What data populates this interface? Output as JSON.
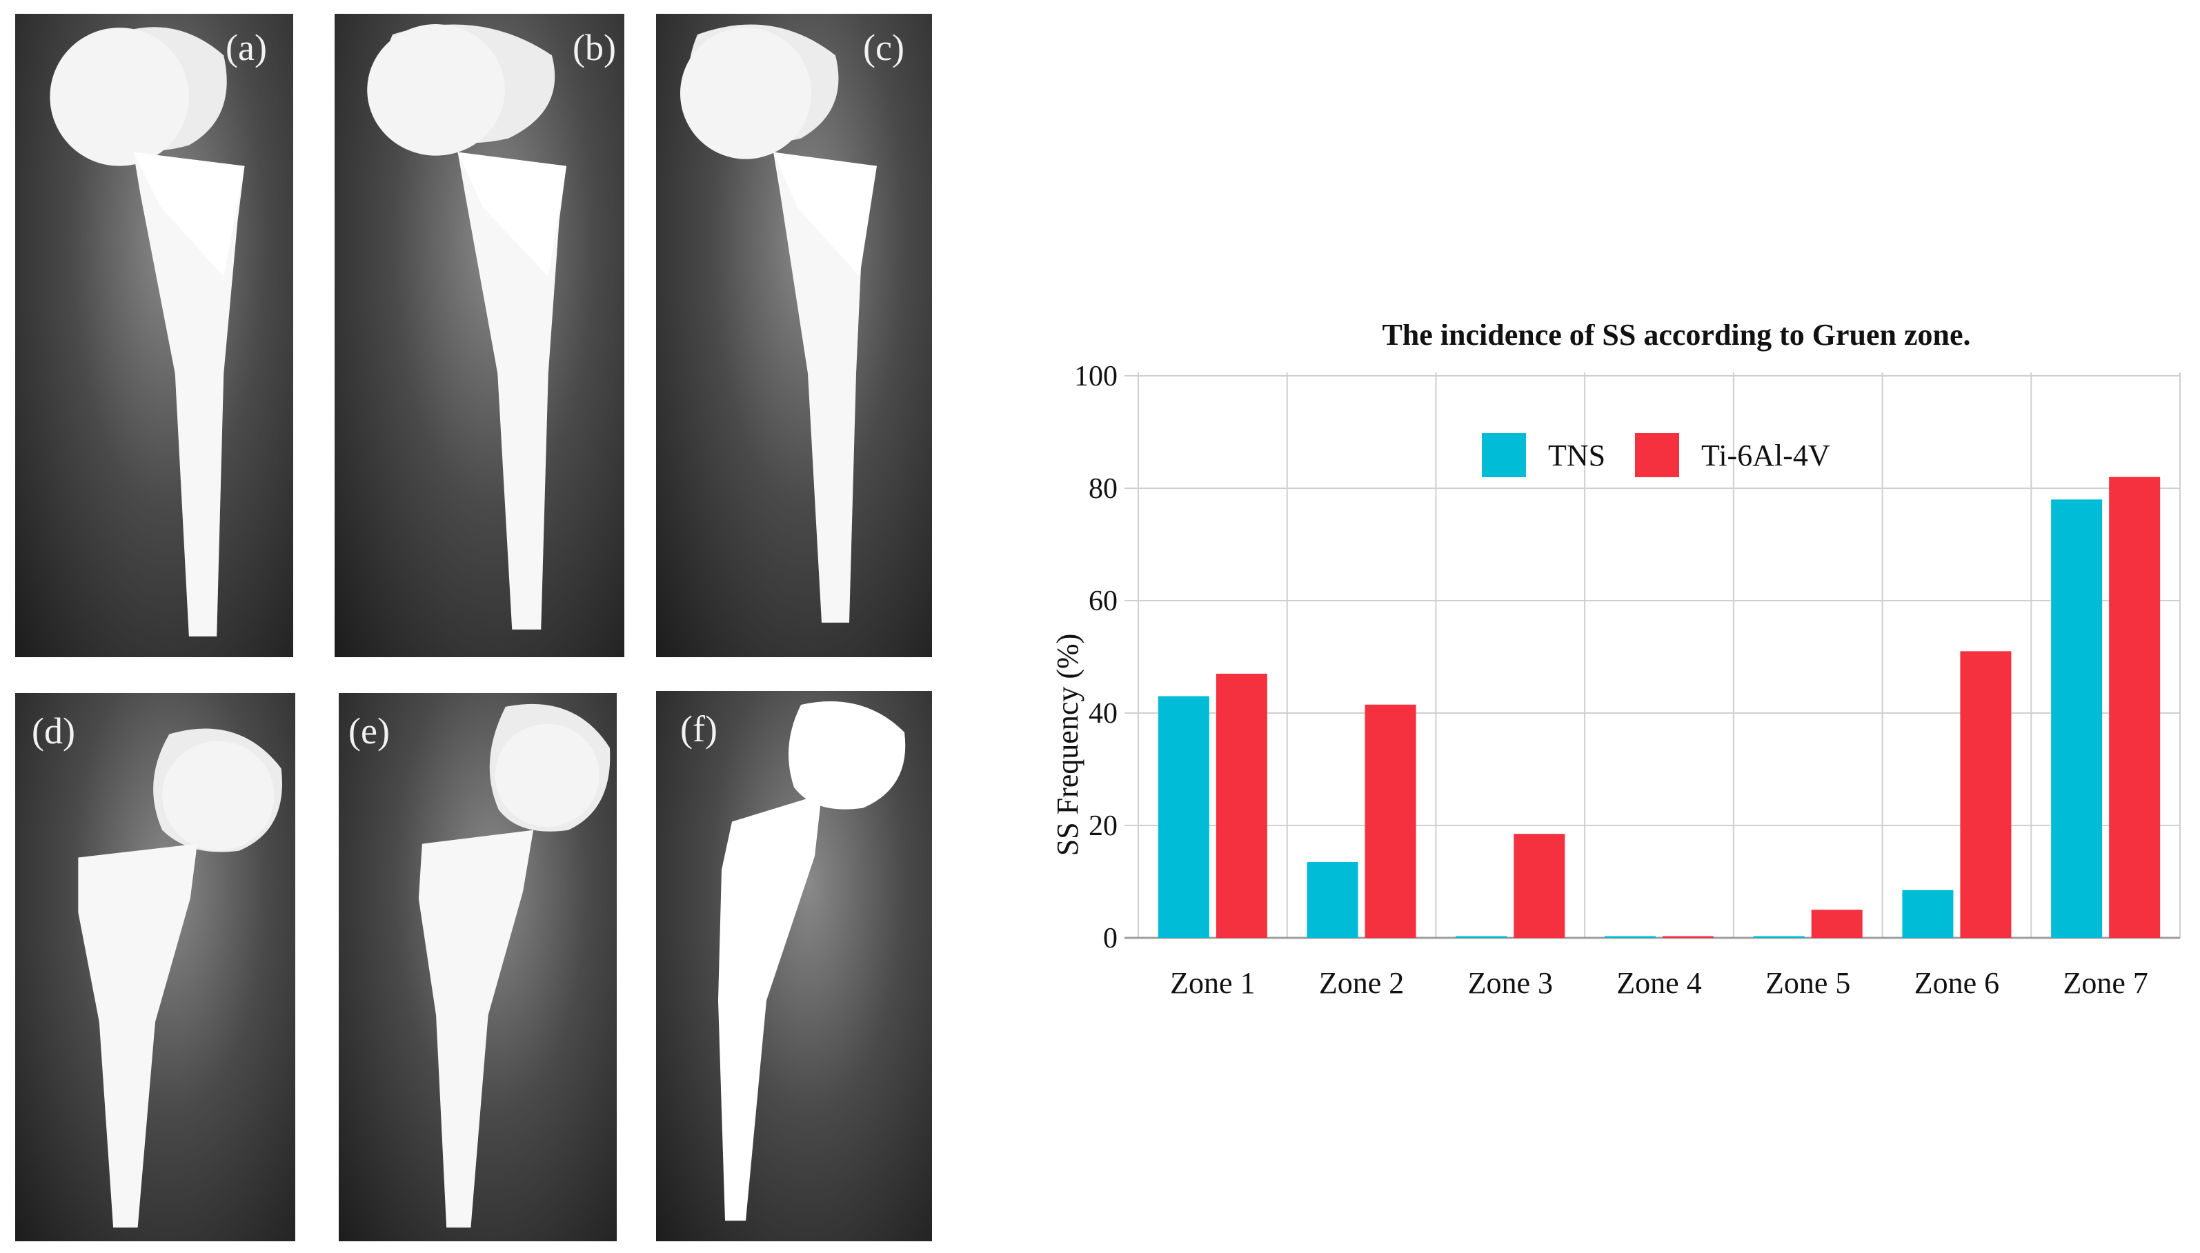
{
  "panels": [
    {
      "label": "(a)"
    },
    {
      "label": "(b)"
    },
    {
      "label": "(c)"
    },
    {
      "label": "(d)"
    },
    {
      "label": "(e)"
    },
    {
      "label": "(f)"
    }
  ],
  "colors": {
    "tns": "#00BCD6",
    "ti": "#F5303F",
    "grid": "#cfcfcf",
    "axis": "#9e9e9e"
  },
  "chart_data": {
    "type": "bar",
    "title": "The incidence of SS according to Gruen zone.",
    "xlabel": "",
    "ylabel": "SS Frequency (%)",
    "ylim": [
      0,
      100
    ],
    "yticks": [
      "0",
      "20",
      "40",
      "60",
      "80",
      "100"
    ],
    "legend_position": "top-center",
    "grid": true,
    "categories": [
      "Zone 1",
      "Zone 2",
      "Zone 3",
      "Zone 4",
      "Zone 5",
      "Zone 6",
      "Zone 7"
    ],
    "series": [
      {
        "name": "TNS",
        "color": "#00BCD6",
        "values": [
          43,
          13.5,
          0.3,
          0.3,
          0.3,
          8.5,
          78
        ]
      },
      {
        "name": "Ti-6Al-4V",
        "color": "#F5303F",
        "values": [
          47,
          41.5,
          18.5,
          0.3,
          5,
          51,
          82
        ]
      }
    ]
  }
}
